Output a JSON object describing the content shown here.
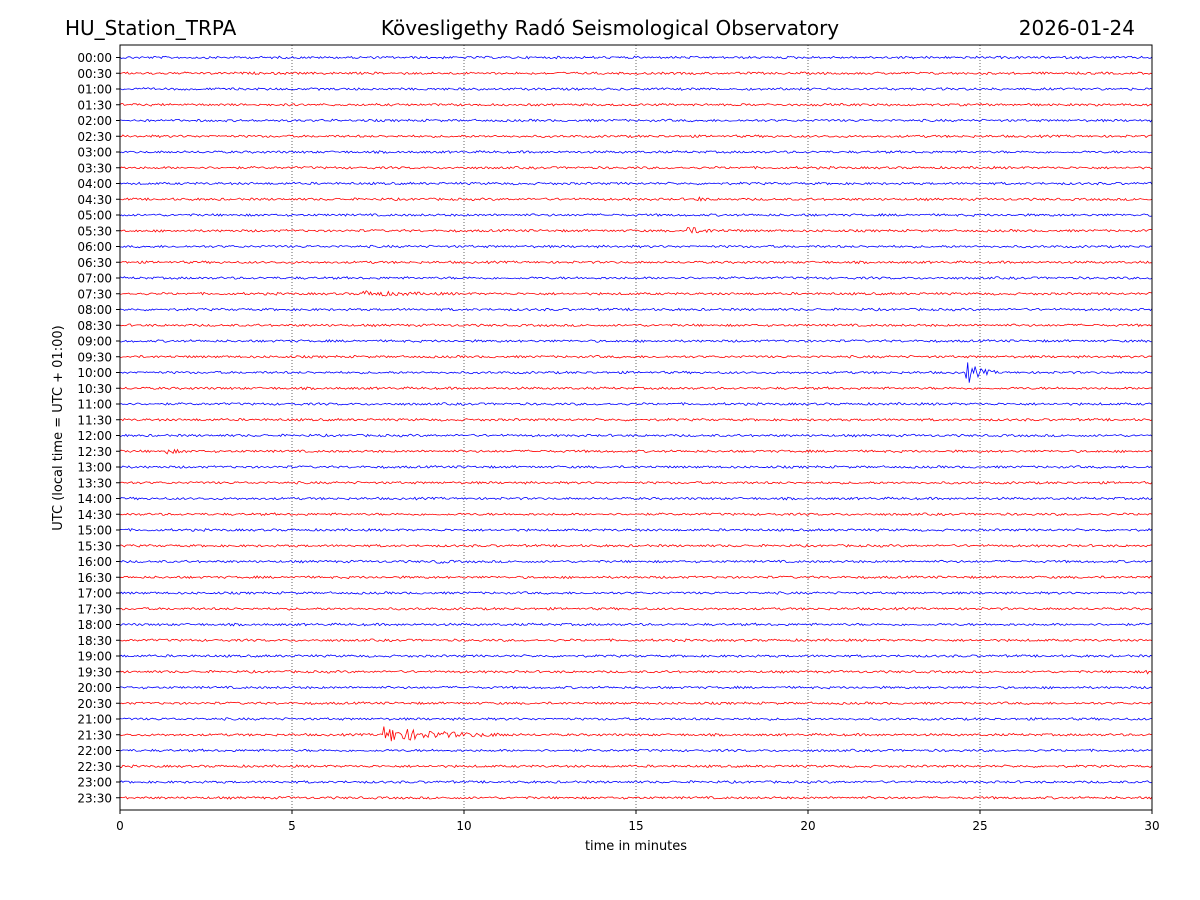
{
  "chart_data": {
    "type": "line",
    "title": "Kövesligethy Radó Seismological Observatory",
    "station": "HU_Station_TRPA",
    "date": "2026-01-24",
    "xlabel": "time in minutes",
    "ylabel": "UTC (local time = UTC + 01:00)",
    "xlim": [
      0,
      30
    ],
    "x_ticks": [
      0,
      5,
      10,
      15,
      20,
      25,
      30
    ],
    "grid": "vertical dotted at x ticks",
    "trace_colors": [
      "#0000ff",
      "#ff0000"
    ],
    "rows": [
      {
        "label": "00:00",
        "events": []
      },
      {
        "label": "00:30",
        "events": []
      },
      {
        "label": "01:00",
        "events": []
      },
      {
        "label": "01:30",
        "events": []
      },
      {
        "label": "02:00",
        "events": []
      },
      {
        "label": "02:30",
        "events": []
      },
      {
        "label": "03:00",
        "events": []
      },
      {
        "label": "03:30",
        "events": []
      },
      {
        "label": "04:00",
        "events": []
      },
      {
        "label": "04:30",
        "events": [
          {
            "start_min": 16.8,
            "end_min": 17.2,
            "amplitude": 2
          }
        ]
      },
      {
        "label": "05:00",
        "events": []
      },
      {
        "label": "05:30",
        "events": [
          {
            "start_min": 16.5,
            "end_min": 18.0,
            "amplitude": 3
          }
        ]
      },
      {
        "label": "06:00",
        "events": []
      },
      {
        "label": "06:30",
        "events": []
      },
      {
        "label": "07:00",
        "events": []
      },
      {
        "label": "07:30",
        "events": [
          {
            "start_min": 7.0,
            "end_min": 9.8,
            "amplitude": 2.5
          }
        ]
      },
      {
        "label": "08:00",
        "events": []
      },
      {
        "label": "08:30",
        "events": []
      },
      {
        "label": "09:00",
        "events": []
      },
      {
        "label": "09:30",
        "events": []
      },
      {
        "label": "10:00",
        "events": [
          {
            "start_min": 24.6,
            "end_min": 25.5,
            "amplitude": 12
          }
        ]
      },
      {
        "label": "10:30",
        "events": []
      },
      {
        "label": "11:00",
        "events": []
      },
      {
        "label": "11:30",
        "events": []
      },
      {
        "label": "12:00",
        "events": []
      },
      {
        "label": "12:30",
        "events": [
          {
            "start_min": 1.3,
            "end_min": 2.2,
            "amplitude": 2
          }
        ]
      },
      {
        "label": "13:00",
        "events": []
      },
      {
        "label": "13:30",
        "events": []
      },
      {
        "label": "14:00",
        "events": []
      },
      {
        "label": "14:30",
        "events": []
      },
      {
        "label": "15:00",
        "events": []
      },
      {
        "label": "15:30",
        "events": []
      },
      {
        "label": "16:00",
        "events": [
          {
            "start_min": 9.2,
            "end_min": 9.7,
            "amplitude": 2
          }
        ]
      },
      {
        "label": "16:30",
        "events": []
      },
      {
        "label": "17:00",
        "events": []
      },
      {
        "label": "17:30",
        "events": []
      },
      {
        "label": "18:00",
        "events": []
      },
      {
        "label": "18:30",
        "events": []
      },
      {
        "label": "19:00",
        "events": []
      },
      {
        "label": "19:30",
        "events": [
          {
            "start_min": 29.8,
            "end_min": 30.0,
            "amplitude": 3
          }
        ]
      },
      {
        "label": "20:00",
        "events": []
      },
      {
        "label": "20:30",
        "events": []
      },
      {
        "label": "21:00",
        "events": []
      },
      {
        "label": "21:30",
        "events": [
          {
            "start_min": 7.6,
            "end_min": 11.5,
            "amplitude": 8
          }
        ]
      },
      {
        "label": "22:00",
        "events": []
      },
      {
        "label": "22:30",
        "events": []
      },
      {
        "label": "23:00",
        "events": []
      },
      {
        "label": "23:30",
        "events": []
      }
    ]
  }
}
